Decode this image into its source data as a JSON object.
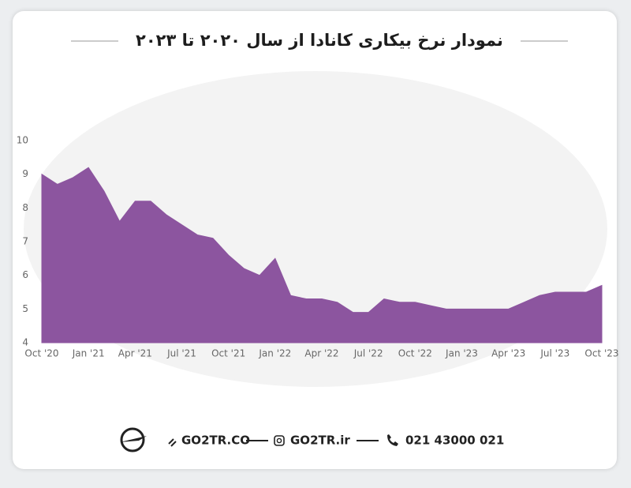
{
  "chart_data": {
    "type": "area",
    "title": "نمودار نرخ بیکاری کانادا از سال ۲۰۲۰ تا ۲۰۲۳",
    "categories": [
      "Oct '20",
      null,
      null,
      "Jan '21",
      null,
      null,
      "Apr '21",
      null,
      null,
      "Jul '21",
      null,
      null,
      "Oct '21",
      null,
      null,
      "Jan '22",
      null,
      null,
      "Apr '22",
      null,
      null,
      "Jul '22",
      null,
      null,
      "Oct '22",
      null,
      null,
      "Jan '23",
      null,
      null,
      "Apr '23",
      null,
      null,
      "Jul '23",
      null,
      null,
      "Oct '23"
    ],
    "values": [
      9.0,
      8.7,
      8.9,
      9.2,
      8.5,
      7.6,
      8.2,
      8.2,
      7.8,
      7.5,
      7.2,
      7.1,
      6.6,
      6.2,
      6.0,
      6.5,
      5.4,
      5.3,
      5.3,
      5.2,
      4.9,
      4.9,
      5.3,
      5.2,
      5.2,
      5.1,
      5.0,
      5.0,
      5.0,
      5.0,
      5.0,
      5.2,
      5.4,
      5.5,
      5.5,
      5.5,
      5.7
    ],
    "color": "#8c559f",
    "ylim": [
      4,
      10
    ],
    "yticks": [
      4,
      5,
      6,
      7,
      8,
      9,
      10
    ],
    "grid": false
  },
  "footer": {
    "website": "GO2TR.CO",
    "instagram": "GO2TR.ir",
    "phone": "021 43000 021"
  }
}
